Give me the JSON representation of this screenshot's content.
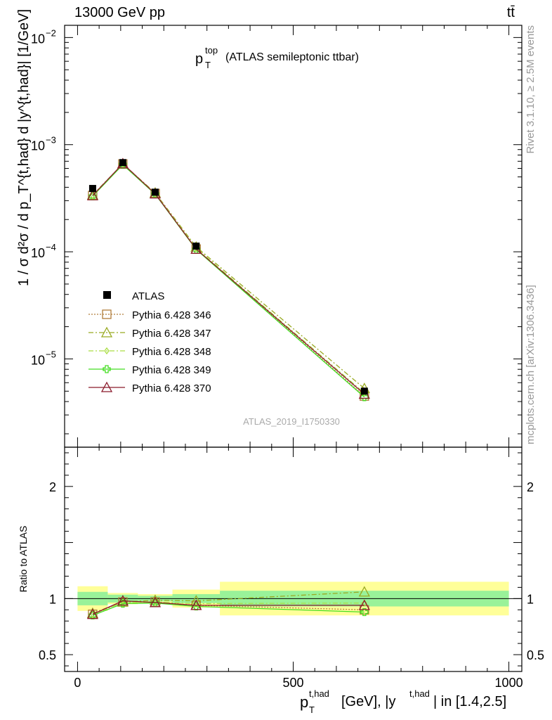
{
  "header": {
    "left": "13000 GeV pp",
    "right": "tt̄"
  },
  "side_labels": {
    "rivet": "Rivet 3.1.10, ≥ 2.5M events",
    "mcplots": "mcplots.cern.ch [arXiv:1306.3436]"
  },
  "chart_data": [
    {
      "type": "line",
      "title_main": "p",
      "title_sup": "top",
      "title_sub": "T",
      "title_rest": "(ATLAS semileptonic ttbar)",
      "analysis_id": "ATLAS_2019_I1750330",
      "ylabel": "1 / σ d²σ / d p_T^{t,had} d |y^{t,had}| [1/GeV]",
      "yscale": "log",
      "ylim": [
        1.5e-06,
        0.013
      ],
      "xlim": [
        -30,
        1030
      ],
      "y_ticks": [
        {
          "value": 1e-05,
          "label": "10",
          "exp": "−5"
        },
        {
          "value": 0.0001,
          "label": "10",
          "exp": "−4"
        },
        {
          "value": 0.001,
          "label": "10",
          "exp": "−3"
        },
        {
          "value": 0.01,
          "label": "10",
          "exp": "−2"
        }
      ],
      "x": [
        35,
        105,
        180,
        275,
        665
      ],
      "x_bins": [
        [
          0,
          70
        ],
        [
          70,
          140
        ],
        [
          140,
          220
        ],
        [
          220,
          330
        ],
        [
          330,
          1000
        ]
      ],
      "data": {
        "name": "ATLAS",
        "values": [
          0.00039,
          0.00068,
          0.00036,
          0.000113,
          5e-06
        ]
      },
      "series": [
        {
          "name": "Pythia 6.428 346",
          "color": "#b07d3a",
          "marker": "square",
          "dash": "2,2",
          "values": [
            0.000335,
            0.00066,
            0.00035,
            0.000106,
            4.5e-06
          ]
        },
        {
          "name": "Pythia 6.428 347",
          "color": "#99aa22",
          "marker": "triangle",
          "dash": "7,3,2,3",
          "values": [
            0.00034,
            0.00066,
            0.000355,
            0.000111,
            5.3e-06
          ]
        },
        {
          "name": "Pythia 6.428 348",
          "color": "#aadd44",
          "marker": "diamond",
          "dash": "7,3,2,3",
          "values": [
            0.000335,
            0.000655,
            0.00035,
            0.000108,
            4.8e-06
          ]
        },
        {
          "name": "Pythia 6.428 349",
          "color": "#44dd22",
          "marker": "cross",
          "dash": "",
          "values": [
            0.00033,
            0.00065,
            0.000345,
            0.000105,
            4.4e-06
          ]
        },
        {
          "name": "Pythia 6.428 370",
          "color": "#8b1a2b",
          "marker": "triangle",
          "dash": "",
          "values": [
            0.000335,
            0.000665,
            0.000348,
            0.000106,
            4.7e-06
          ]
        }
      ],
      "legend_placement": "lower-left"
    },
    {
      "type": "line",
      "ylabel": "Ratio to ATLAS",
      "xlabel_main": "p",
      "xlabel_sup": "t,had",
      "xlabel_sub": "T",
      "xlabel_rest": "[GeV], |y",
      "xlabel_sup2": "t,had",
      "xlabel_end": "| in [1.4,2.5]",
      "ylim": [
        0.35,
        2.35
      ],
      "x_ticks": [
        {
          "value": 0,
          "label": "0"
        },
        {
          "value": 500,
          "label": "500"
        },
        {
          "value": 1000,
          "label": "1000"
        }
      ],
      "y_ticks": [
        {
          "value": 0.5,
          "label": "0.5"
        },
        {
          "value": 1,
          "label": "1"
        },
        {
          "value": 2,
          "label": "2"
        }
      ],
      "band_stat": [
        [
          0.94,
          1.06
        ],
        [
          0.965,
          1.035
        ],
        [
          0.975,
          1.025
        ],
        [
          0.96,
          1.04
        ],
        [
          0.93,
          1.07
        ]
      ],
      "band_total": [
        [
          0.89,
          1.11
        ],
        [
          0.95,
          1.05
        ],
        [
          0.96,
          1.04
        ],
        [
          0.92,
          1.08
        ],
        [
          0.85,
          1.15
        ]
      ],
      "band_colors": {
        "stat": "#99f299",
        "total": "#ffff99"
      },
      "series": [
        {
          "name": "Pythia 6.428 346",
          "values": [
            0.86,
            0.97,
            0.97,
            0.94,
            0.9
          ]
        },
        {
          "name": "Pythia 6.428 347",
          "values": [
            0.87,
            0.97,
            0.985,
            0.98,
            1.06
          ]
        },
        {
          "name": "Pythia 6.428 348",
          "values": [
            0.86,
            0.965,
            0.97,
            0.955,
            0.96
          ]
        },
        {
          "name": "Pythia 6.428 349",
          "values": [
            0.85,
            0.955,
            0.96,
            0.93,
            0.88
          ]
        },
        {
          "name": "Pythia 6.428 370",
          "values": [
            0.86,
            0.98,
            0.965,
            0.94,
            0.94
          ]
        }
      ]
    }
  ]
}
